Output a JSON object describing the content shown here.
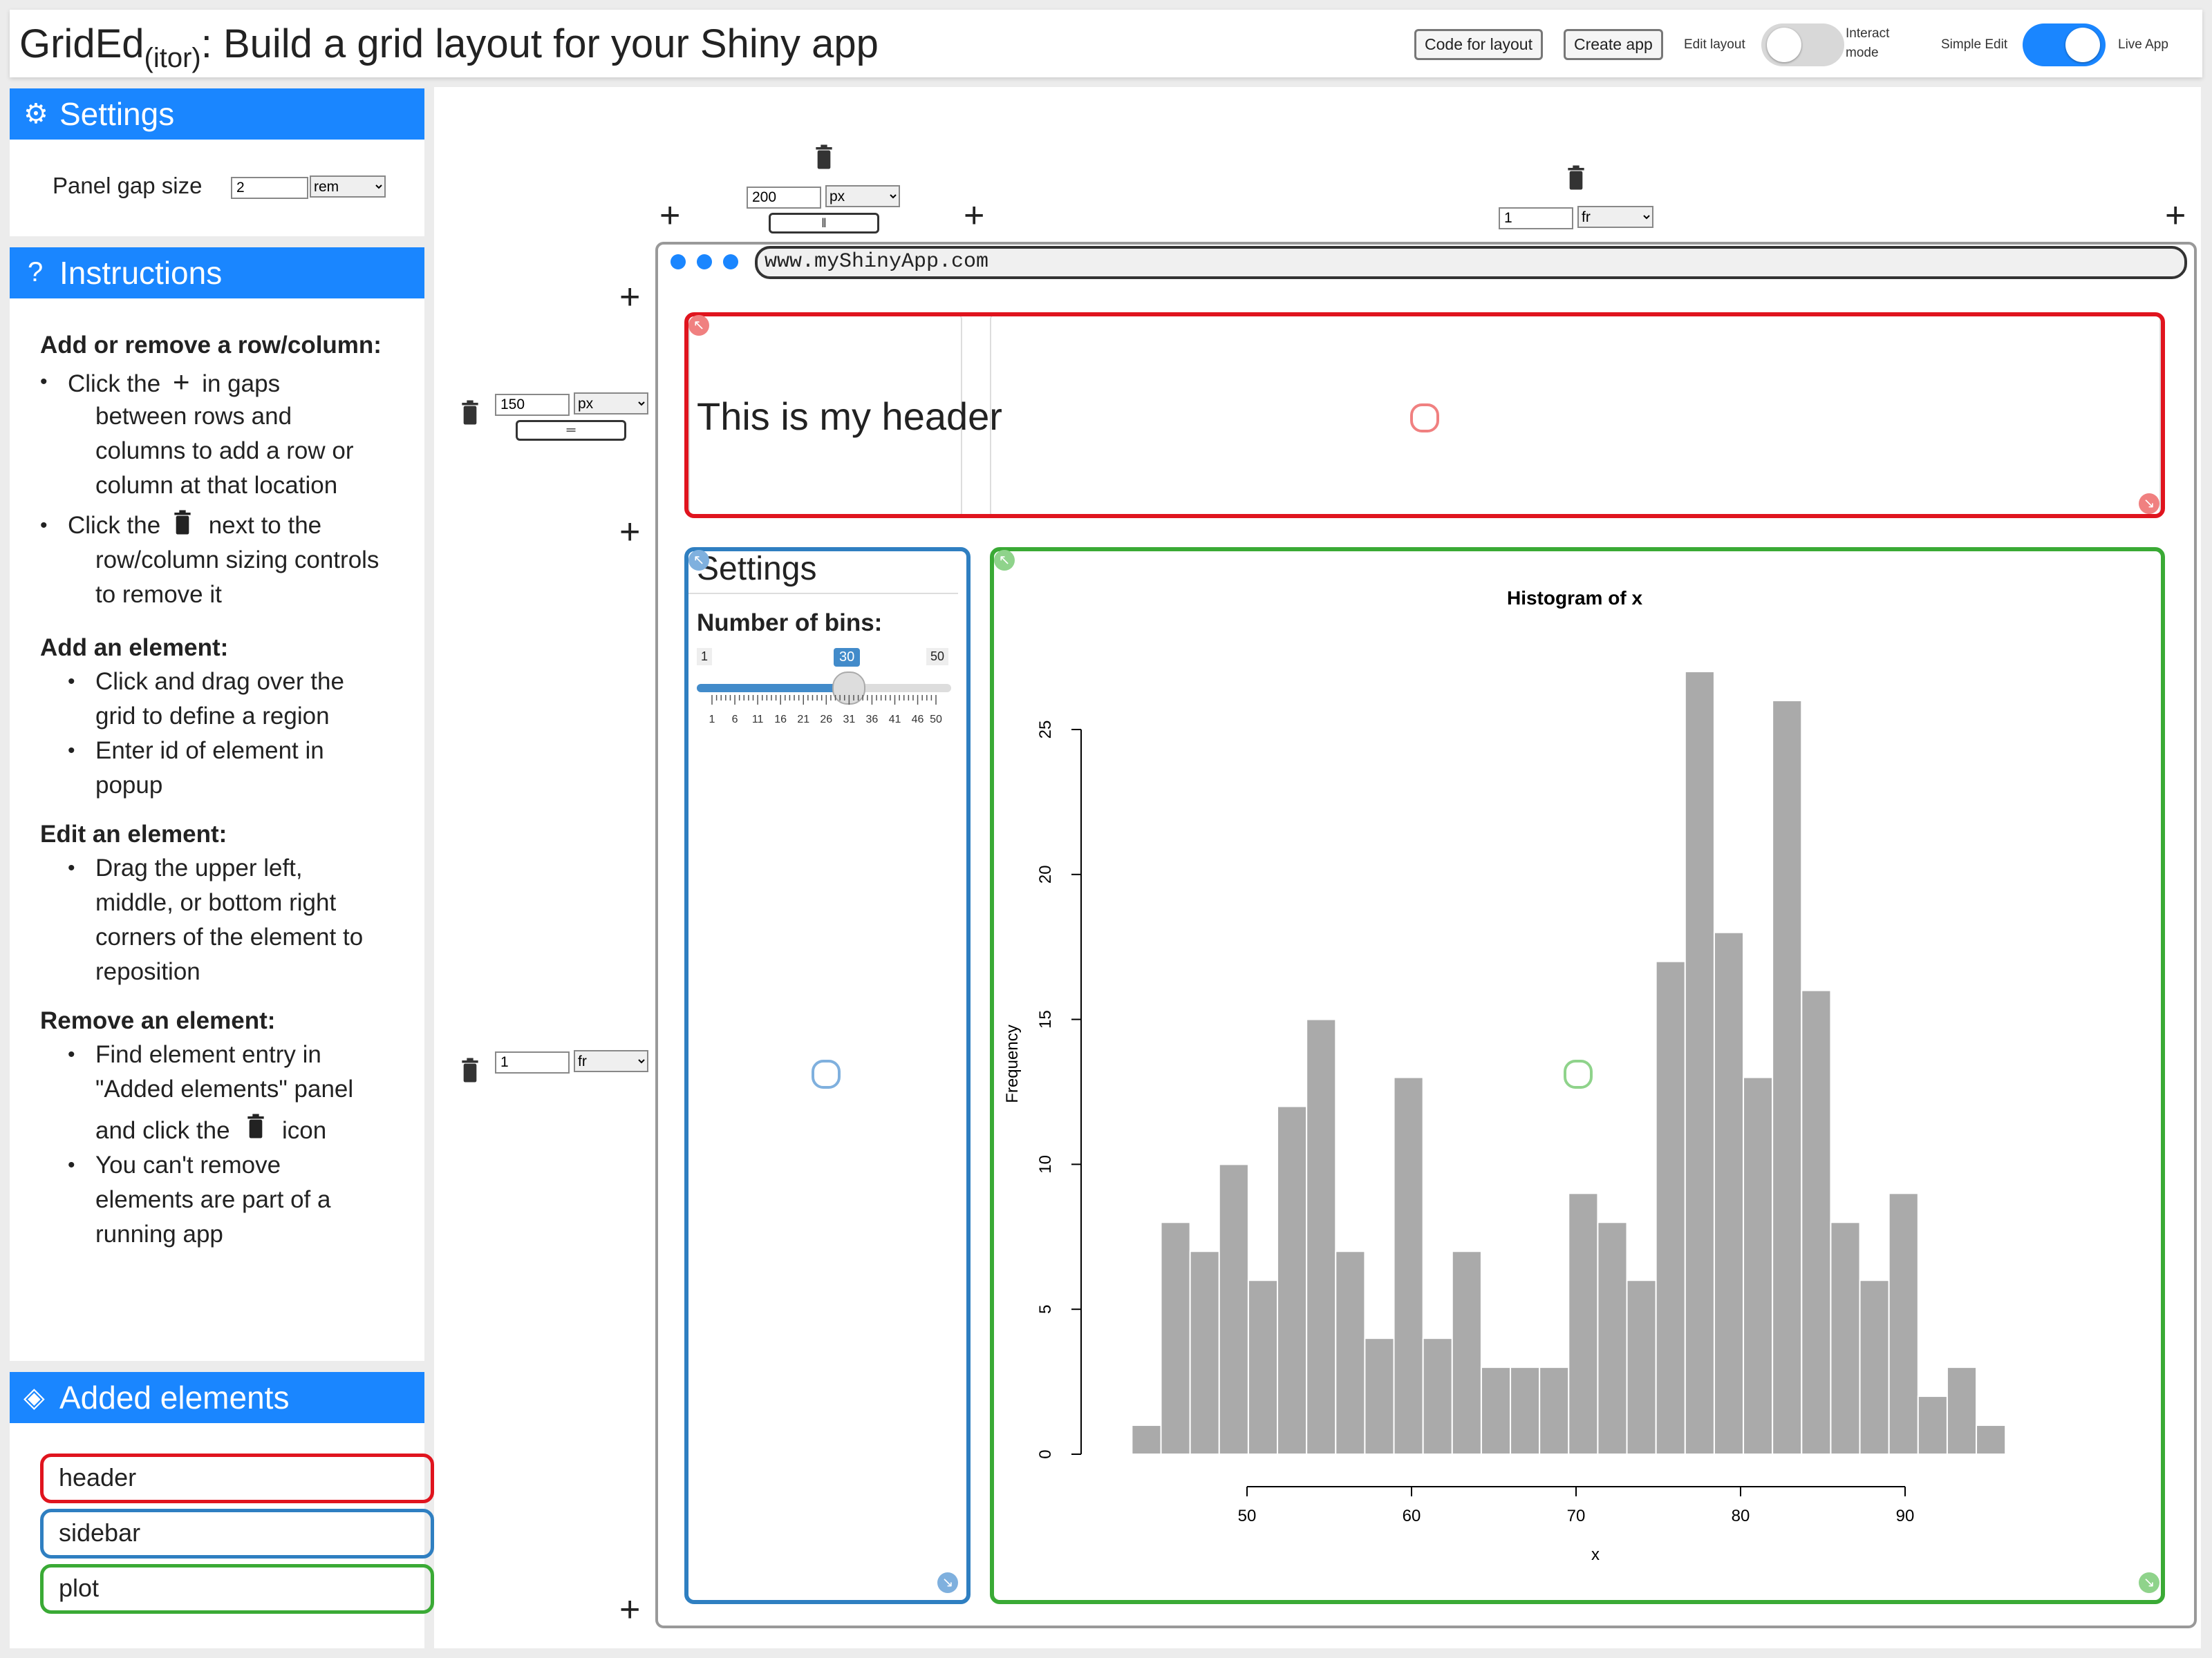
{
  "header": {
    "title_main": "GridEd",
    "title_sub": "(itor)",
    "title_rest": ": Build a grid layout for your Shiny app",
    "code_button": "Code for layout",
    "create_button": "Create app",
    "edit_layout_label": "Edit layout",
    "interact_mode_label1": "Interact",
    "interact_mode_label2": "mode",
    "interact_toggle_on": false,
    "simple_edit_label": "Simple Edit",
    "live_app_label": "Live App",
    "live_toggle_on": true
  },
  "settings_panel": {
    "title": "Settings",
    "gap_label": "Panel gap size",
    "gap_value": "2",
    "gap_unit": "rem"
  },
  "instructions_panel": {
    "title": "Instructions",
    "sections": [
      {
        "heading": "Add or remove a row/column:"
      },
      {
        "heading": "Add an element:"
      },
      {
        "heading": "Edit an element:"
      },
      {
        "heading": "Remove an element:"
      }
    ],
    "s1_b1_l1a": "Click the",
    "s1_b1_l1b": "in gaps",
    "s1_b1_l2": "between rows and",
    "s1_b1_l3": "columns to add a row or",
    "s1_b1_l4": "column at that location",
    "s1_b2_l1a": "Click the",
    "s1_b2_l1b": "next to the",
    "s1_b2_l2": "row/column sizing controls",
    "s1_b2_l3": "to remove it",
    "s2_b1_l1": "Click and drag over the",
    "s2_b1_l2": "grid to define a region",
    "s2_b2_l1": "Enter id of element in",
    "s2_b2_l2": "popup",
    "s3_b1_l1": "Drag the upper left,",
    "s3_b1_l2": "middle, or bottom right",
    "s3_b1_l3": "corners of the element to",
    "s3_b1_l4": "reposition",
    "s4_b1_l1": "Find element entry in",
    "s4_b1_l2": "\"Added elements\" panel",
    "s4_b1_l3a": "and click the",
    "s4_b1_l3b": "icon",
    "s4_b2_l1": "You can't remove",
    "s4_b2_l2": "elements are part of a",
    "s4_b2_l3": "running app"
  },
  "elements_panel": {
    "title": "Added elements",
    "items": [
      {
        "label": "header",
        "color": "#e0141e"
      },
      {
        "label": "sidebar",
        "color": "#2f7fc1"
      },
      {
        "label": "plot",
        "color": "#3aaa35"
      }
    ]
  },
  "grid_controls": {
    "col1_value": "200",
    "col1_unit": "px",
    "col2_value": "1",
    "col2_unit": "fr",
    "row1_value": "150",
    "row1_unit": "px",
    "row2_value": "1",
    "row2_unit": "fr"
  },
  "preview": {
    "url": "www.myShinyApp.com",
    "header_text": "This is my header",
    "sidebar_title": "Settings",
    "bins_label": "Number of bins:",
    "slider_min": "1",
    "slider_max": "50",
    "slider_value": 30,
    "slider_ticks": [
      "1",
      "6",
      "11",
      "16",
      "21",
      "26",
      "31",
      "36",
      "41",
      "46",
      "50"
    ]
  },
  "chart_data": {
    "type": "bar",
    "title": "Histogram of x",
    "xlabel": "x",
    "ylabel": "Frequency",
    "bin_start": 43,
    "bin_width": 1.77,
    "values": [
      1,
      8,
      7,
      10,
      6,
      12,
      15,
      7,
      4,
      13,
      4,
      7,
      3,
      3,
      3,
      9,
      8,
      6,
      17,
      27,
      18,
      13,
      26,
      16,
      8,
      6,
      9,
      2,
      3,
      1
    ],
    "xticks": [
      50,
      60,
      70,
      80,
      90
    ],
    "yticks": [
      0,
      5,
      10,
      15,
      20,
      25
    ],
    "xlim": [
      50,
      90
    ],
    "ylim": [
      0,
      27
    ],
    "bar_color": "#aaaaaa"
  }
}
